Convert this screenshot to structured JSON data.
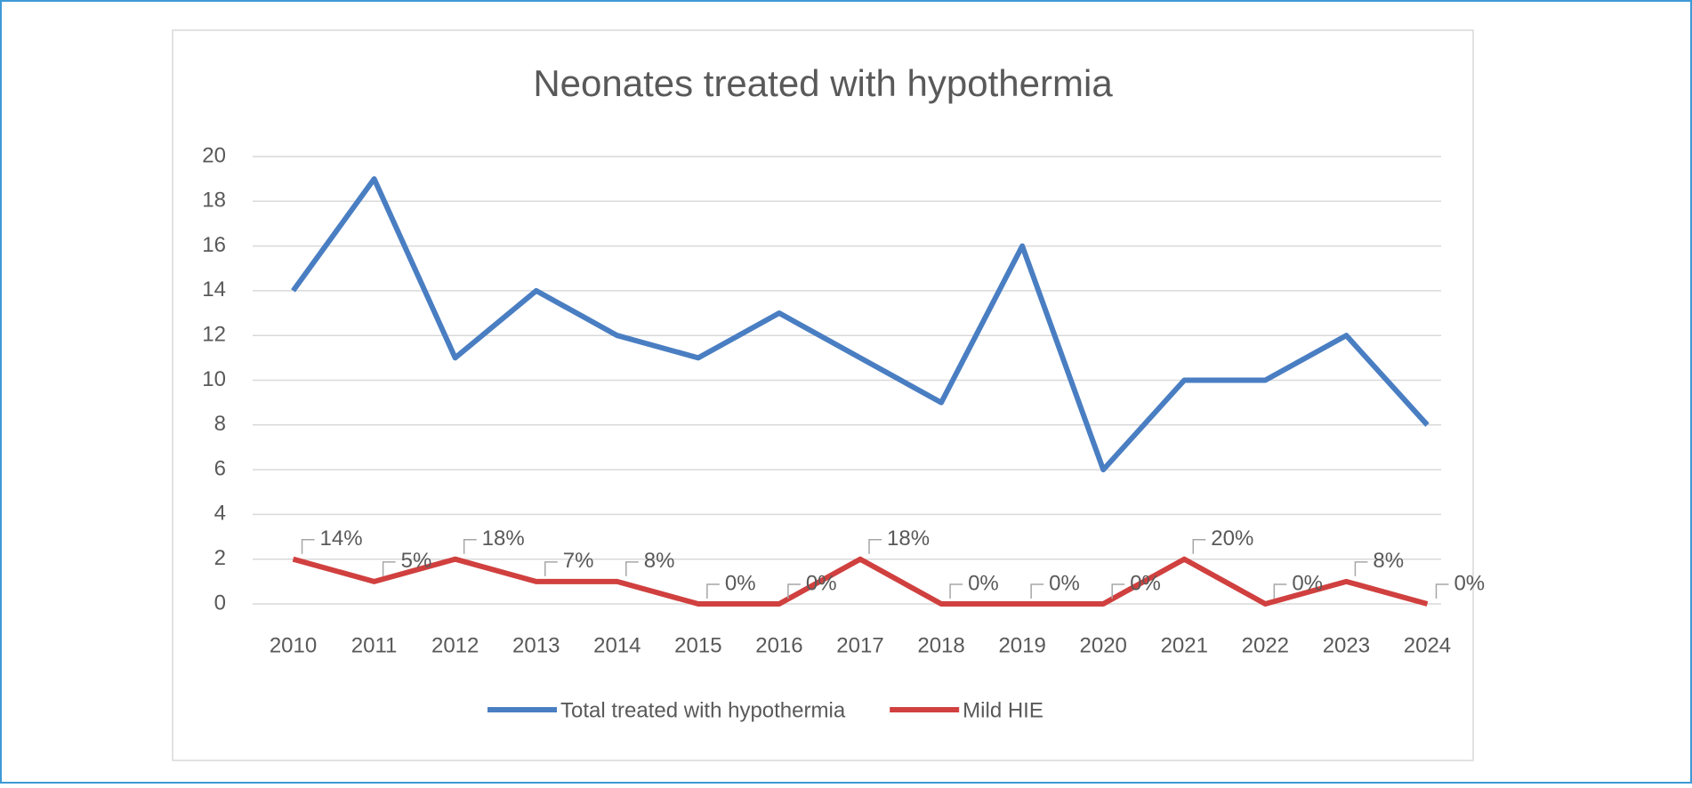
{
  "chart_data": {
    "type": "line",
    "title": "Neonates treated with hypothermia",
    "categories": [
      "2010",
      "2011",
      "2012",
      "2013",
      "2014",
      "2015",
      "2016",
      "2017",
      "2018",
      "2019",
      "2020",
      "2021",
      "2022",
      "2023",
      "2024"
    ],
    "series": [
      {
        "name": "Total treated with hypothermia",
        "color": "#4a7ec2",
        "values": [
          14,
          19,
          11,
          14,
          12,
          11,
          13,
          11,
          9,
          16,
          6,
          10,
          10,
          12,
          8
        ]
      },
      {
        "name": "Mild HIE",
        "color": "#d0403f",
        "values": [
          2,
          1,
          2,
          1,
          1,
          0,
          0,
          2,
          0,
          0,
          0,
          2,
          0,
          1,
          0
        ],
        "labels": [
          "14%",
          "5%",
          "18%",
          "7%",
          "8%",
          "0%",
          "0%",
          "18%",
          "0%",
          "0%",
          "0%",
          "20%",
          "0%",
          "8%",
          "0%"
        ]
      }
    ],
    "ylim": [
      0,
      20
    ],
    "yticks": [
      0,
      2,
      4,
      6,
      8,
      10,
      12,
      14,
      16,
      18,
      20
    ],
    "grid": true,
    "legend": "bottom"
  }
}
